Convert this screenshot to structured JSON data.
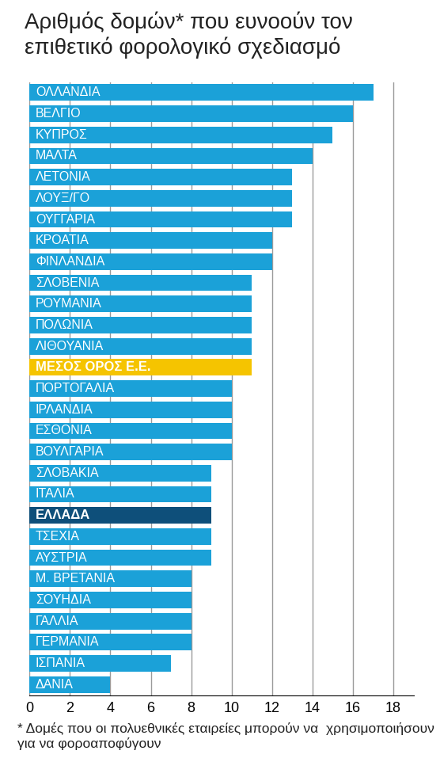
{
  "chart_data": {
    "type": "bar",
    "orientation": "horizontal",
    "title": "Αριθμός δομών* που ευνοούν τον επιθετικό φορολογικό σχεδιασμό",
    "annotations": [
      "* Δομές που οι πολυεθνικές εταιρείες μπορούν να  χρησιμοποιήσουν για να φοροαποφύγουν"
    ],
    "categories": [
      "ΟΛΛΑΝΔΙΑ",
      "ΒΕΛΓΙΟ",
      "ΚΥΠΡΟΣ",
      "ΜΑΛΤΑ",
      "ΛΕΤΟΝΙΑ",
      "ΛΟΥΞ/ΓΟ",
      "ΟΥΓΓΑΡΙΑ",
      "ΚΡΟΑΤΙΑ",
      "ΦΙΝΛΑΝΔΙΑ",
      "ΣΛΟΒΕΝΙΑ",
      "ΡΟΥΜΑΝΙΑ",
      "ΠΟΛΩΝΙΑ",
      "ΛΙΘΟΥΑΝΙΑ",
      "ΜΕΣΟΣ ΟΡΟΣ Ε.Ε.",
      "ΠΟΡΤΟΓΑΛΙΑ",
      "ΙΡΛΑΝΔΙΑ",
      "ΕΣΘΟΝΙΑ",
      "ΒΟΥΛΓΑΡΙΑ",
      "ΣΛΟΒΑΚΙΑ",
      "ΙΤΑΛΙΑ",
      "ΕΛΛΑΔΑ",
      "ΤΣΕΧΙΑ",
      "ΑΥΣΤΡΙΑ",
      "Μ. ΒΡΕΤΑΝΙΑ",
      "ΣΟΥΗΔΙΑ",
      "ΓΑΛΛΙΑ",
      "ΓΕΡΜΑΝΙΑ",
      "ΙΣΠΑΝΙΑ",
      "ΔΑΝΙΑ"
    ],
    "values": [
      17,
      16,
      15,
      14,
      13,
      13,
      13,
      12,
      12,
      11,
      11,
      11,
      11,
      11,
      10,
      10,
      10,
      10,
      9,
      9,
      9,
      9,
      9,
      8,
      8,
      8,
      8,
      7,
      4
    ],
    "colors": [
      "#1ba1d8",
      "#1ba1d8",
      "#1ba1d8",
      "#1ba1d8",
      "#1ba1d8",
      "#1ba1d8",
      "#1ba1d8",
      "#1ba1d8",
      "#1ba1d8",
      "#1ba1d8",
      "#1ba1d8",
      "#1ba1d8",
      "#1ba1d8",
      "#f5c400",
      "#1ba1d8",
      "#1ba1d8",
      "#1ba1d8",
      "#1ba1d8",
      "#1ba1d8",
      "#1ba1d8",
      "#0e4f7a",
      "#1ba1d8",
      "#1ba1d8",
      "#1ba1d8",
      "#1ba1d8",
      "#1ba1d8",
      "#1ba1d8",
      "#1ba1d8",
      "#1ba1d8"
    ],
    "xlim": [
      0,
      19
    ],
    "xticks": [
      0,
      2,
      4,
      6,
      8,
      10,
      12,
      14,
      16,
      18
    ],
    "grid": true,
    "tick_labels": "x"
  }
}
